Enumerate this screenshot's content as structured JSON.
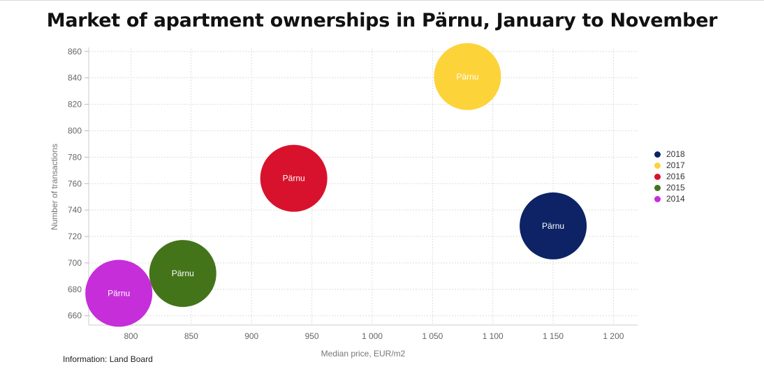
{
  "chart_data": {
    "type": "scatter",
    "title": "Market of apartment ownerships in Pärnu, January to November",
    "xlabel": "Median price, EUR/m2",
    "ylabel": "Number of transactions",
    "xlim": [
      765,
      1220
    ],
    "ylim": [
      653,
      862
    ],
    "x_ticks": [
      800,
      850,
      900,
      950,
      1000,
      1050,
      1100,
      1150,
      1200
    ],
    "x_tick_labels": [
      "800",
      "850",
      "900",
      "950",
      "1 000",
      "1 050",
      "1 100",
      "1 150",
      "1 200"
    ],
    "y_ticks": [
      660,
      680,
      700,
      720,
      740,
      760,
      780,
      800,
      820,
      840,
      860
    ],
    "y_tick_labels": [
      "660",
      "680",
      "700",
      "720",
      "740",
      "760",
      "780",
      "800",
      "820",
      "840",
      "860"
    ],
    "grid": true,
    "legend_position": "right",
    "series": [
      {
        "name": "2018",
        "label": "Pärnu",
        "x": 1150,
        "y": 728,
        "color": "#0d2366"
      },
      {
        "name": "2017",
        "label": "Pärnu",
        "x": 1079,
        "y": 841,
        "color": "#fdd33a"
      },
      {
        "name": "2016",
        "label": "Pärnu",
        "x": 935,
        "y": 764,
        "color": "#d8122d"
      },
      {
        "name": "2015",
        "label": "Pärnu",
        "x": 843,
        "y": 692,
        "color": "#44741a"
      },
      {
        "name": "2014",
        "label": "Pärnu",
        "x": 790,
        "y": 677,
        "color": "#c52ed9"
      }
    ]
  },
  "source": "Information: Land Board"
}
